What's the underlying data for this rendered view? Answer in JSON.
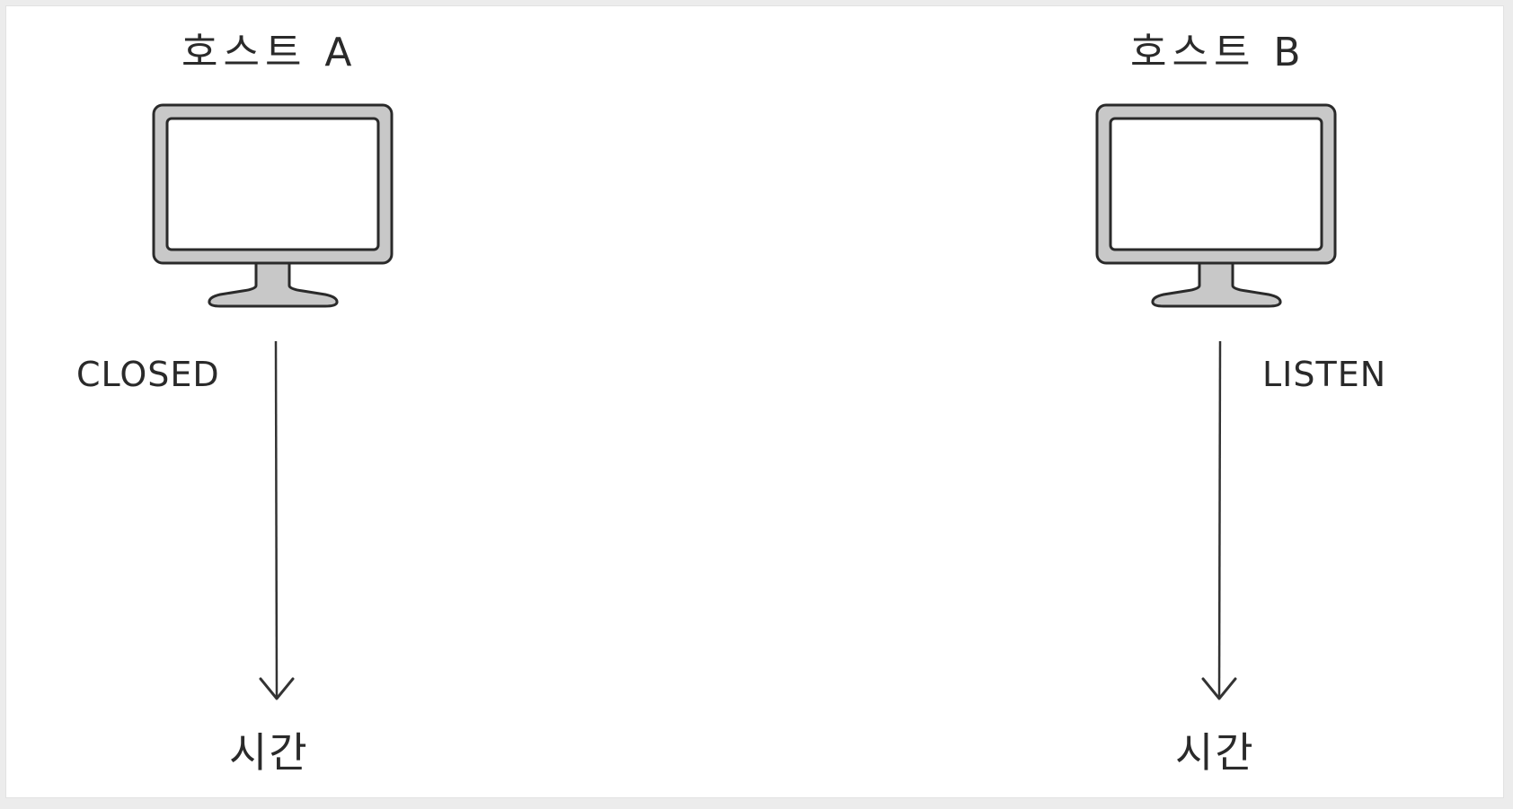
{
  "hosts": [
    {
      "label": "호스트 A",
      "state": "CLOSED",
      "time_label": "시간",
      "icon": "monitor-icon"
    },
    {
      "label": "호스트 B",
      "state": "LISTEN",
      "time_label": "시간",
      "icon": "monitor-icon"
    }
  ],
  "colors": {
    "monitor_fill": "#c8c8c8",
    "screen_fill": "#ffffff",
    "outline": "#2a2a2a",
    "line": "#333333"
  }
}
